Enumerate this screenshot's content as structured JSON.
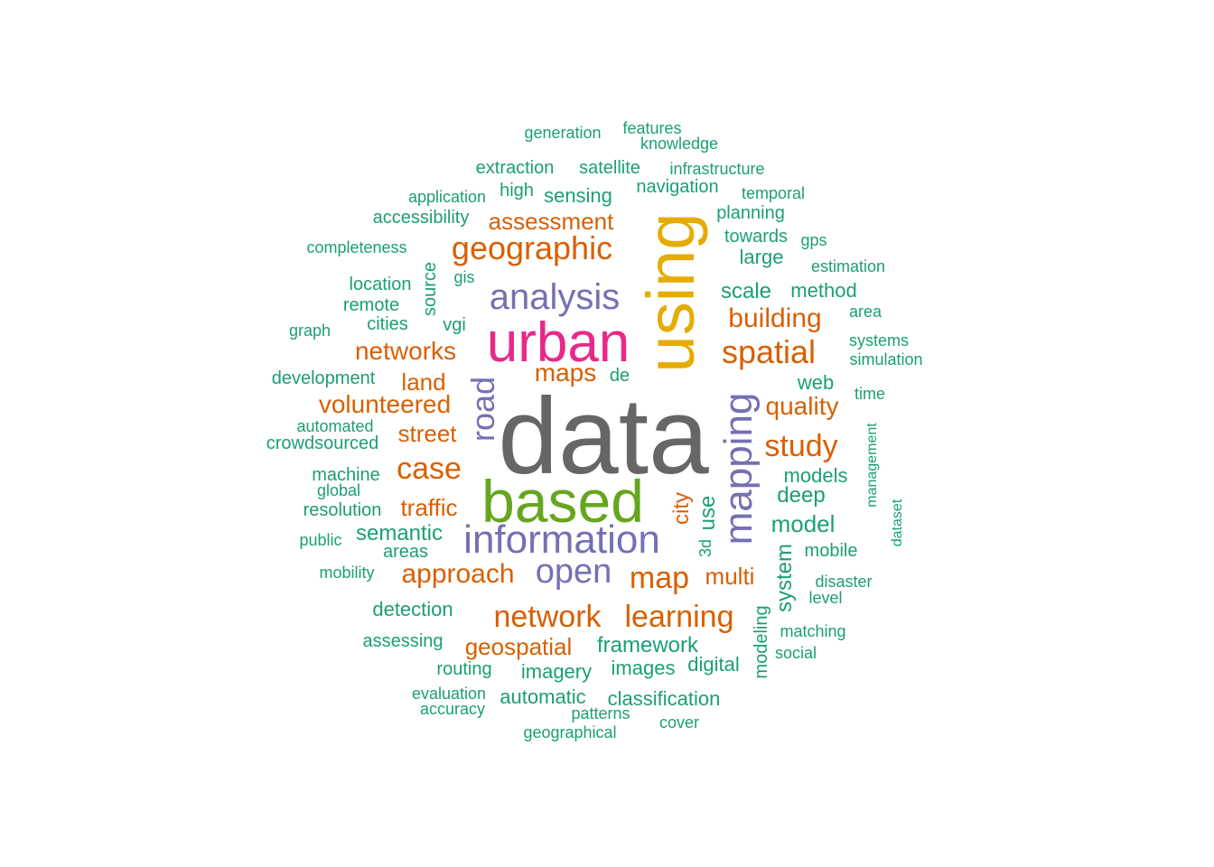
{
  "palette": {
    "teal": "#1b9e77",
    "orange": "#d95f02",
    "purple": "#7570b3",
    "pink": "#e7298a",
    "green": "#66a61e",
    "gold": "#e6ab02",
    "gray": "#666666"
  },
  "words": [
    {
      "text": "data",
      "weight": 10,
      "color": "gray"
    },
    {
      "text": "using",
      "weight": 8,
      "color": "gold"
    },
    {
      "text": "based",
      "weight": 7,
      "color": "green"
    },
    {
      "text": "urban",
      "weight": 7,
      "color": "pink"
    },
    {
      "text": "information",
      "weight": 5,
      "color": "purple"
    },
    {
      "text": "mapping",
      "weight": 5,
      "color": "purple"
    },
    {
      "text": "analysis",
      "weight": 5,
      "color": "purple"
    },
    {
      "text": "open",
      "weight": 5,
      "color": "purple"
    },
    {
      "text": "road",
      "weight": 4,
      "color": "purple"
    },
    {
      "text": "geographic",
      "weight": 4,
      "color": "orange"
    },
    {
      "text": "spatial",
      "weight": 4,
      "color": "orange"
    },
    {
      "text": "network",
      "weight": 4,
      "color": "orange"
    },
    {
      "text": "learning",
      "weight": 4,
      "color": "orange"
    },
    {
      "text": "map",
      "weight": 4,
      "color": "orange"
    },
    {
      "text": "case",
      "weight": 4,
      "color": "orange"
    },
    {
      "text": "study",
      "weight": 4,
      "color": "orange"
    },
    {
      "text": "approach",
      "weight": 3,
      "color": "orange"
    },
    {
      "text": "building",
      "weight": 3,
      "color": "orange"
    },
    {
      "text": "volunteered",
      "weight": 3,
      "color": "orange"
    },
    {
      "text": "networks",
      "weight": 3,
      "color": "orange"
    },
    {
      "text": "quality",
      "weight": 3,
      "color": "orange"
    },
    {
      "text": "geospatial",
      "weight": 3,
      "color": "orange"
    },
    {
      "text": "assessment",
      "weight": 3,
      "color": "orange"
    },
    {
      "text": "maps",
      "weight": 3,
      "color": "orange"
    },
    {
      "text": "street",
      "weight": 3,
      "color": "orange"
    },
    {
      "text": "traffic",
      "weight": 3,
      "color": "orange"
    },
    {
      "text": "land",
      "weight": 3,
      "color": "orange"
    },
    {
      "text": "multi",
      "weight": 3,
      "color": "orange"
    },
    {
      "text": "city",
      "weight": 3,
      "color": "orange"
    },
    {
      "text": "model",
      "weight": 2,
      "color": "teal"
    },
    {
      "text": "framework",
      "weight": 2,
      "color": "teal"
    },
    {
      "text": "semantic",
      "weight": 2,
      "color": "teal"
    },
    {
      "text": "deep",
      "weight": 2,
      "color": "teal"
    },
    {
      "text": "scale",
      "weight": 2,
      "color": "teal"
    },
    {
      "text": "system",
      "weight": 2,
      "color": "teal"
    },
    {
      "text": "imagery",
      "weight": 2,
      "color": "teal"
    },
    {
      "text": "use",
      "weight": 2,
      "color": "teal"
    },
    {
      "text": "models",
      "weight": 2,
      "color": "teal"
    },
    {
      "text": "digital",
      "weight": 2,
      "color": "teal"
    },
    {
      "text": "images",
      "weight": 2,
      "color": "teal"
    },
    {
      "text": "detection",
      "weight": 2,
      "color": "teal"
    },
    {
      "text": "classification",
      "weight": 2,
      "color": "teal"
    },
    {
      "text": "automatic",
      "weight": 2,
      "color": "teal"
    },
    {
      "text": "large",
      "weight": 2,
      "color": "teal"
    },
    {
      "text": "web",
      "weight": 2,
      "color": "teal"
    },
    {
      "text": "method",
      "weight": 2,
      "color": "teal"
    },
    {
      "text": "sensing",
      "weight": 2,
      "color": "teal"
    },
    {
      "text": "satellite",
      "weight": 2,
      "color": "teal"
    },
    {
      "text": "extraction",
      "weight": 2,
      "color": "teal"
    },
    {
      "text": "navigation",
      "weight": 2,
      "color": "teal"
    },
    {
      "text": "planning",
      "weight": 2,
      "color": "teal"
    },
    {
      "text": "towards",
      "weight": 2,
      "color": "teal"
    },
    {
      "text": "source",
      "weight": 2,
      "color": "teal"
    },
    {
      "text": "location",
      "weight": 2,
      "color": "teal"
    },
    {
      "text": "high",
      "weight": 2,
      "color": "teal"
    },
    {
      "text": "development",
      "weight": 2,
      "color": "teal"
    },
    {
      "text": "accessibility",
      "weight": 2,
      "color": "teal"
    },
    {
      "text": "remote",
      "weight": 2,
      "color": "teal"
    },
    {
      "text": "cities",
      "weight": 2,
      "color": "teal"
    },
    {
      "text": "machine",
      "weight": 2,
      "color": "teal"
    },
    {
      "text": "resolution",
      "weight": 2,
      "color": "teal"
    },
    {
      "text": "areas",
      "weight": 2,
      "color": "teal"
    },
    {
      "text": "assessing",
      "weight": 2,
      "color": "teal"
    },
    {
      "text": "routing",
      "weight": 2,
      "color": "teal"
    },
    {
      "text": "crowdsourced",
      "weight": 2,
      "color": "teal"
    },
    {
      "text": "automated",
      "weight": 2,
      "color": "teal"
    },
    {
      "text": "de",
      "weight": 2,
      "color": "teal"
    },
    {
      "text": "vgi",
      "weight": 2,
      "color": "teal"
    },
    {
      "text": "mobile",
      "weight": 2,
      "color": "teal"
    },
    {
      "text": "modeling",
      "weight": 2,
      "color": "teal"
    },
    {
      "text": "matching",
      "weight": 2,
      "color": "teal"
    },
    {
      "text": "disaster",
      "weight": 2,
      "color": "teal"
    },
    {
      "text": "3d",
      "weight": 2,
      "color": "teal"
    },
    {
      "text": "infrastructure",
      "weight": 1,
      "color": "teal"
    },
    {
      "text": "temporal",
      "weight": 1,
      "color": "teal"
    },
    {
      "text": "generation",
      "weight": 1,
      "color": "teal"
    },
    {
      "text": "features",
      "weight": 1,
      "color": "teal"
    },
    {
      "text": "knowledge",
      "weight": 1,
      "color": "teal"
    },
    {
      "text": "application",
      "weight": 1,
      "color": "teal"
    },
    {
      "text": "completeness",
      "weight": 1,
      "color": "teal"
    },
    {
      "text": "gis",
      "weight": 1,
      "color": "teal"
    },
    {
      "text": "gps",
      "weight": 1,
      "color": "teal"
    },
    {
      "text": "estimation",
      "weight": 1,
      "color": "teal"
    },
    {
      "text": "area",
      "weight": 1,
      "color": "teal"
    },
    {
      "text": "systems",
      "weight": 1,
      "color": "teal"
    },
    {
      "text": "simulation",
      "weight": 1,
      "color": "teal"
    },
    {
      "text": "graph",
      "weight": 1,
      "color": "teal"
    },
    {
      "text": "time",
      "weight": 1,
      "color": "teal"
    },
    {
      "text": "management",
      "weight": 1,
      "color": "teal"
    },
    {
      "text": "dataset",
      "weight": 1,
      "color": "teal"
    },
    {
      "text": "global",
      "weight": 1,
      "color": "teal"
    },
    {
      "text": "public",
      "weight": 1,
      "color": "teal"
    },
    {
      "text": "mobility",
      "weight": 1,
      "color": "teal"
    },
    {
      "text": "level",
      "weight": 1,
      "color": "teal"
    },
    {
      "text": "social",
      "weight": 1,
      "color": "teal"
    },
    {
      "text": "evaluation",
      "weight": 1,
      "color": "teal"
    },
    {
      "text": "accuracy",
      "weight": 1,
      "color": "teal"
    },
    {
      "text": "patterns",
      "weight": 1,
      "color": "teal"
    },
    {
      "text": "cover",
      "weight": 1,
      "color": "teal"
    },
    {
      "text": "geographical",
      "weight": 1,
      "color": "teal"
    }
  ]
}
